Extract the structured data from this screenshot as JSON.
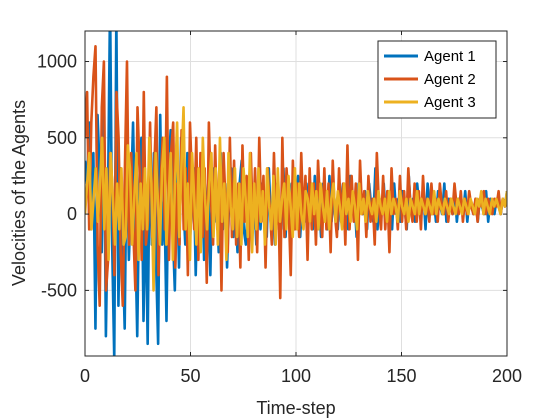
{
  "chart_data": {
    "type": "line",
    "xlabel": "Time-step",
    "ylabel": "Velocities of the Agents",
    "xlim": [
      0,
      200
    ],
    "ylim": [
      -930,
      1200
    ],
    "xticks": [
      0,
      50,
      100,
      150,
      200
    ],
    "yticks": [
      -500,
      0,
      500,
      1000
    ],
    "grid": true,
    "legend_position": "top-right",
    "series": [
      {
        "name": "Agent 1",
        "color": "#0072BD",
        "values": [
          350,
          200,
          600,
          -100,
          400,
          -750,
          650,
          300,
          -250,
          800,
          -800,
          100,
          1400,
          -200,
          -950,
          1300,
          -600,
          300,
          -200,
          -750,
          500,
          -300,
          100,
          600,
          -100,
          -800,
          200,
          500,
          -700,
          100,
          -850,
          500,
          -200,
          400,
          -300,
          -850,
          650,
          -200,
          100,
          -700,
          300,
          550,
          -100,
          -500,
          300,
          -350,
          500,
          100,
          -200,
          400,
          -250,
          50,
          300,
          -400,
          200,
          -100,
          400,
          -300,
          50,
          200,
          -400,
          300,
          -50,
          150,
          -250,
          400,
          -100,
          200,
          -350,
          100,
          300,
          -150,
          50,
          -250,
          200,
          350,
          -100,
          -200,
          100,
          300,
          -50,
          150,
          -200,
          250,
          -100,
          200,
          50,
          -150,
          300,
          -50,
          100,
          -200,
          200,
          50,
          -100,
          300,
          -150,
          100,
          -50,
          200,
          -100,
          50,
          250,
          -150,
          100,
          -50,
          200,
          0,
          150,
          -100,
          250,
          -50,
          100,
          -150,
          200,
          50,
          -100,
          250,
          -50,
          150,
          0,
          -100,
          200,
          50,
          -50,
          150,
          -100,
          250,
          0,
          100,
          -150,
          200,
          50,
          0,
          150,
          -100,
          200,
          50,
          -50,
          300,
          -100,
          100,
          0,
          200,
          -50,
          150,
          50,
          -100,
          200,
          0,
          100,
          -50,
          150,
          50,
          -100,
          250,
          0,
          100,
          -50,
          200,
          50,
          0,
          150,
          -100,
          200,
          50,
          0,
          100,
          -50,
          150,
          50,
          0,
          200,
          -50,
          100,
          50,
          0,
          150,
          -50,
          100,
          50,
          0,
          150,
          -50,
          100,
          50,
          0,
          100,
          -50,
          100,
          50,
          0,
          150,
          -50,
          100,
          50,
          0,
          100,
          50,
          0,
          100,
          50,
          150
        ]
      },
      {
        "name": "Agent 2",
        "color": "#D95319",
        "values": [
          500,
          800,
          -100,
          600,
          900,
          1100,
          -200,
          -600,
          700,
          1000,
          -500,
          -300,
          400,
          200,
          -400,
          800,
          500,
          -250,
          -600,
          300,
          1000,
          -200,
          400,
          -100,
          -500,
          700,
          300,
          -300,
          800,
          -200,
          -50,
          600,
          -150,
          300,
          700,
          -400,
          200,
          500,
          -100,
          900,
          -300,
          400,
          600,
          -350,
          200,
          -200,
          550,
          -100,
          300,
          -400,
          600,
          200,
          -100,
          500,
          -300,
          400,
          -150,
          300,
          -450,
          600,
          100,
          -200,
          450,
          -100,
          300,
          -500,
          400,
          50,
          -250,
          500,
          -150,
          350,
          -200,
          200,
          -350,
          450,
          -50,
          250,
          -300,
          400,
          -100,
          300,
          -250,
          500,
          -50,
          250,
          -350,
          300,
          50,
          -200,
          400,
          -100,
          200,
          -550,
          500,
          -150,
          300,
          50,
          -400,
          350,
          -100,
          200,
          -150,
          400,
          -50,
          250,
          -300,
          300,
          -100,
          200,
          -200,
          350,
          50,
          -150,
          300,
          -100,
          200,
          -250,
          350,
          0,
          -150,
          300,
          -50,
          200,
          -200,
          450,
          -100,
          250,
          -50,
          200,
          -300,
          350,
          0,
          150,
          -150,
          250,
          -50,
          100,
          -200,
          400,
          50,
          -100,
          250,
          -100,
          150,
          -250,
          300,
          0,
          100,
          -100,
          250,
          -50,
          150,
          -100,
          300,
          50,
          -50,
          200,
          -50,
          150,
          -100,
          250,
          0,
          100,
          -50,
          200,
          0,
          100,
          -50,
          200,
          50,
          0,
          150,
          -50,
          100,
          0,
          200,
          50,
          0,
          150,
          -50,
          100,
          0,
          150,
          50,
          0,
          100,
          -50,
          100,
          50,
          150,
          0,
          100,
          50,
          0,
          100,
          50,
          150,
          0,
          100,
          50,
          100
        ]
      },
      {
        "name": "Agent 3",
        "color": "#EDB120",
        "values": [
          0,
          200,
          400,
          -100,
          100,
          300,
          -50,
          200,
          500,
          -100,
          300,
          -300,
          400,
          100,
          -200,
          200,
          -100,
          300,
          -200,
          -150,
          450,
          300,
          -200,
          100,
          400,
          -300,
          200,
          -100,
          300,
          -100,
          500,
          200,
          -500,
          400,
          100,
          -200,
          300,
          500,
          -200,
          100,
          400,
          -300,
          200,
          600,
          -150,
          300,
          700,
          -100,
          200,
          -300,
          400,
          100,
          -200,
          300,
          -250,
          500,
          100,
          -100,
          200,
          400,
          -150,
          300,
          -200,
          500,
          -50,
          200,
          -300,
          400,
          50,
          -100,
          300,
          -150,
          200,
          -200,
          300,
          100,
          -150,
          400,
          -250,
          200,
          -100,
          300,
          -50,
          150,
          -200,
          300,
          50,
          -100,
          250,
          -200,
          300,
          -50,
          100,
          200,
          -100,
          250,
          50,
          -150,
          300,
          -100,
          200,
          0,
          -100,
          150,
          100,
          -50,
          200,
          0,
          150,
          -100,
          200,
          50,
          -50,
          150,
          -100,
          100,
          200,
          -50,
          150,
          50,
          -100,
          200,
          0,
          100,
          -50,
          150,
          50,
          -100,
          200,
          0,
          100,
          -50,
          150,
          50,
          0,
          100,
          -50,
          150,
          50,
          0,
          100,
          -50,
          150,
          0,
          100,
          50,
          -50,
          150,
          50,
          0,
          100,
          -50,
          100,
          50,
          0,
          150,
          0,
          100,
          50,
          0,
          100,
          50,
          0,
          150,
          0,
          100,
          50,
          0,
          100,
          50,
          0,
          100,
          50,
          0,
          100,
          50,
          0,
          100,
          50,
          0,
          100,
          50,
          0,
          100,
          50,
          150,
          0,
          100,
          50,
          0,
          100,
          50,
          100,
          50,
          0,
          100,
          50,
          150
        ]
      }
    ]
  }
}
